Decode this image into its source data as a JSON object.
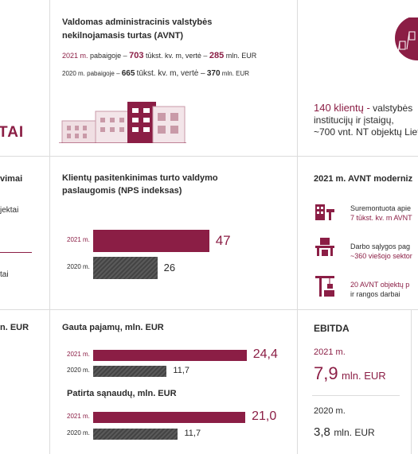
{
  "left_col": {
    "heading_fragment": "TAI",
    "subheading_fragment": "vimai",
    "text1": "jektai",
    "text2": "tai",
    "ebit_fragment": "n. EUR"
  },
  "avnt": {
    "title_line1": "Valdomas administracinis valstybės",
    "title_line2": "nekilnojamasis turtas (AVNT)",
    "row2021": {
      "year": "2021 m.",
      "text_a": "pabaigoje –",
      "area": "703",
      "text_b": "tūkst. kv. m, vertė –",
      "value": "285",
      "unit": "mln. EUR"
    },
    "row2020": {
      "year": "2020 m.",
      "text_a": "pabaigoje –",
      "area": "665",
      "text_b": "tūkst. kv. m, vertė –",
      "value": "370",
      "unit": "mln. EUR"
    }
  },
  "clients": {
    "line1_number": "140 klientų -",
    "line1_rest": "valstybės",
    "line2": "institucijų ir įstaigų,",
    "line3": "~700 vnt. NT objektų Liet"
  },
  "nps": {
    "title_line1": "Klientų pasitenkinimas turto valdymo",
    "title_line2": "paslaugomis (NPS indeksas)",
    "chart_data": {
      "type": "bar",
      "categories": [
        "2021 m.",
        "2020 m."
      ],
      "values": [
        47,
        26
      ]
    }
  },
  "modern": {
    "title": "2021 m. AVNT moderniz",
    "items": [
      {
        "line1": "Suremontuota apie",
        "line2": "7 tūkst. kv. m AVNT"
      },
      {
        "line1": "Darbo sąlygos pag",
        "line2": "~360 viešojo sektor"
      },
      {
        "line1": "20 AVNT objektų p",
        "line2": "ir rangos darbai"
      }
    ]
  },
  "revenue": {
    "title": "Gauta pajamų, mln. EUR",
    "chart_data": {
      "type": "bar",
      "categories": [
        "2021 m.",
        "2020 m."
      ],
      "values": [
        24.4,
        11.7
      ],
      "labels": [
        "24,4",
        "11,7"
      ]
    }
  },
  "expenses": {
    "title": "Patirta sąnaudų, mln. EUR",
    "chart_data": {
      "type": "bar",
      "categories": [
        "2021 m.",
        "2020 m."
      ],
      "values": [
        21.0,
        11.7
      ],
      "labels": [
        "21,0",
        "11,7"
      ]
    }
  },
  "ebitda": {
    "title": "EBITDA",
    "y2021": {
      "year": "2021 m.",
      "value": "7,9",
      "unit": "mln. EUR"
    },
    "y2020": {
      "year": "2020 m.",
      "value": "3,8",
      "unit": "mln. EUR"
    }
  },
  "colors": {
    "maroon": "#8b1e45",
    "gray_bar": "#505050"
  }
}
